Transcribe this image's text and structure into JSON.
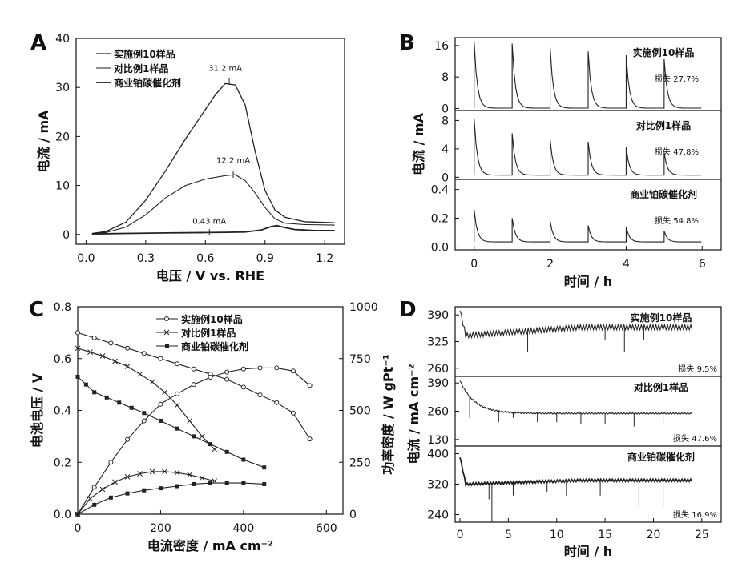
{
  "chart_data": [
    {
      "panel": "A",
      "type": "line",
      "xlabel": "电压 / V vs. RHE",
      "ylabel": "电流 / mA",
      "xlim": [
        -0.05,
        1.3
      ],
      "ylim": [
        -2,
        40
      ],
      "xticks": [
        "0.0",
        "0.3",
        "0.6",
        "0.9",
        "1.2"
      ],
      "yticks": [
        "0",
        "10",
        "20",
        "30",
        "40"
      ],
      "series": [
        {
          "name": "实施例10样品",
          "x": [
            0.03,
            0.1,
            0.2,
            0.3,
            0.4,
            0.5,
            0.6,
            0.65,
            0.7,
            0.75,
            0.8,
            0.85,
            0.9,
            0.95,
            1.0,
            1.1,
            1.25
          ],
          "y": [
            0.2,
            0.6,
            2.5,
            7,
            13,
            19.5,
            25.5,
            28.5,
            30.8,
            30.5,
            26.5,
            17,
            9,
            5,
            3.5,
            2.6,
            2.4
          ]
        },
        {
          "name": "对比例1样品",
          "x": [
            0.03,
            0.1,
            0.2,
            0.3,
            0.4,
            0.5,
            0.6,
            0.7,
            0.75,
            0.8,
            0.85,
            0.9,
            0.95,
            1.0,
            1.1,
            1.25
          ],
          "y": [
            0.1,
            0.4,
            1.5,
            4,
            7.5,
            10,
            11.3,
            12,
            12.2,
            11,
            8.5,
            5.5,
            3.2,
            2.3,
            2,
            1.9
          ]
        },
        {
          "name": "商业铂碳催化剂",
          "x": [
            0.03,
            0.2,
            0.4,
            0.6,
            0.7,
            0.8,
            0.88,
            0.93,
            0.96,
            1.0,
            1.05,
            1.15,
            1.25
          ],
          "y": [
            0.1,
            0.2,
            0.3,
            0.38,
            0.43,
            0.5,
            0.9,
            1.6,
            1.8,
            1.4,
            1,
            0.8,
            0.8
          ]
        }
      ],
      "annotations": [
        "31.2 mA",
        "12.2 mA",
        "0.43 mA"
      ]
    },
    {
      "panel": "B",
      "type": "line",
      "xlabel": "时间 / h",
      "ylabel": "电流 / mA",
      "xlim": [
        -0.5,
        6.5
      ],
      "xticks": [
        "0",
        "2",
        "4",
        "6"
      ],
      "spike_times": [
        0,
        1,
        2,
        3,
        4,
        5
      ],
      "subplots": [
        {
          "name": "实施例10样品",
          "ylim": [
            -0.5,
            18
          ],
          "yticks": [
            "0",
            "8",
            "16"
          ],
          "ytick_values": [
            0,
            8,
            16
          ],
          "peaks": [
            17,
            16.5,
            15.5,
            14.5,
            13.5,
            12.5
          ],
          "baseline": 0.1,
          "loss": "损失 27.7%"
        },
        {
          "name": "对比例1样品",
          "ylim": [
            -0.3,
            9.4
          ],
          "yticks": [
            "0",
            "4",
            "8"
          ],
          "ytick_values": [
            0,
            4,
            8
          ],
          "peaks": [
            8.3,
            6.2,
            5.3,
            5,
            4.2,
            3.5
          ],
          "baseline": 0.3,
          "loss": "损失 47.8%"
        },
        {
          "name": "商业铂碳催化剂",
          "ylim": [
            -0.02,
            0.47
          ],
          "yticks": [
            "0.0",
            "0.2",
            "0.4"
          ],
          "ytick_values": [
            0,
            0.2,
            0.4
          ],
          "peaks": [
            0.26,
            0.2,
            0.18,
            0.15,
            0.14,
            0.11
          ],
          "baseline": 0.035,
          "loss": "损失 54.8%"
        }
      ],
      "yticks_extra": [
        "0.0",
        "0.2",
        "0.4"
      ]
    },
    {
      "panel": "C",
      "type": "line",
      "xlabel": "电流密度 / mA cm⁻²",
      "ylabel": "电池电压 / V",
      "ylabel_right": "功率密度 / W gPt⁻¹",
      "xlim": [
        0,
        640
      ],
      "ylim": [
        0,
        0.8
      ],
      "ylim_right": [
        0,
        1000
      ],
      "xticks": [
        "0",
        "200",
        "400",
        "600"
      ],
      "yticks": [
        "0.0",
        "0.2",
        "0.4",
        "0.6",
        "0.8"
      ],
      "yticks_right": [
        "0",
        "250",
        "500",
        "750",
        "1000"
      ],
      "series": [
        {
          "name": "实施例10样品",
          "axis": "left",
          "x": [
            0,
            40,
            80,
            120,
            160,
            200,
            240,
            280,
            320,
            360,
            400,
            440,
            480,
            520,
            560
          ],
          "y": [
            0.7,
            0.68,
            0.66,
            0.64,
            0.62,
            0.6,
            0.58,
            0.56,
            0.54,
            0.52,
            0.49,
            0.46,
            0.43,
            0.39,
            0.29
          ]
        },
        {
          "name": "对比例1样品",
          "axis": "left",
          "x": [
            0,
            30,
            60,
            90,
            120,
            150,
            180,
            210,
            240,
            270,
            300,
            330
          ],
          "y": [
            0.64,
            0.625,
            0.61,
            0.59,
            0.57,
            0.54,
            0.51,
            0.47,
            0.42,
            0.36,
            0.3,
            0.25
          ]
        },
        {
          "name": "商业铂碳催化剂",
          "axis": "left",
          "x": [
            0,
            20,
            40,
            70,
            100,
            130,
            160,
            200,
            240,
            280,
            320,
            360,
            400,
            450
          ],
          "y": [
            0.53,
            0.5,
            0.47,
            0.45,
            0.43,
            0.41,
            0.39,
            0.36,
            0.33,
            0.3,
            0.27,
            0.24,
            0.21,
            0.18
          ]
        },
        {
          "name": "实施例10样品 功率",
          "axis": "right",
          "x": [
            0,
            40,
            80,
            120,
            160,
            200,
            240,
            280,
            320,
            360,
            400,
            440,
            480,
            520,
            560
          ],
          "y": [
            0,
            130,
            250,
            360,
            450,
            530,
            580,
            625,
            660,
            685,
            700,
            705,
            705,
            690,
            620
          ]
        },
        {
          "name": "对比例1样品 功率",
          "axis": "right",
          "x": [
            0,
            30,
            60,
            90,
            120,
            150,
            180,
            210,
            240,
            270,
            300,
            330
          ],
          "y": [
            0,
            75,
            120,
            155,
            180,
            195,
            205,
            205,
            200,
            190,
            175,
            160
          ]
        },
        {
          "name": "商业铂碳催化剂 功率",
          "axis": "right",
          "x": [
            0,
            40,
            80,
            120,
            160,
            200,
            240,
            280,
            320,
            360,
            400,
            450
          ],
          "y": [
            0,
            45,
            80,
            100,
            115,
            125,
            135,
            145,
            150,
            150,
            150,
            145
          ]
        }
      ]
    },
    {
      "panel": "D",
      "type": "line",
      "xlabel": "时间 / h",
      "ylabel": "电流 / mA cm⁻²",
      "xlim": [
        -0.5,
        27
      ],
      "xticks": [
        "0",
        "5",
        "10",
        "15",
        "20",
        "25"
      ],
      "subplots": [
        {
          "name": "实施例10样品",
          "ylim": [
            240,
            410
          ],
          "yticks": [
            "260",
            "325",
            "390"
          ],
          "ytick_values": [
            260,
            325,
            390
          ],
          "start": 400,
          "base": 340,
          "end": 360,
          "drops": [
            {
              "t": 7,
              "to": 300
            },
            {
              "t": 17,
              "to": 300
            },
            {
              "t": 15,
              "to": 330
            },
            {
              "t": 19,
              "to": 330
            }
          ],
          "loss": "损失 9.5%"
        },
        {
          "name": "对比例1样品",
          "ylim": [
            100,
            420
          ],
          "yticks": [
            "130",
            "260",
            "390"
          ],
          "ytick_values": [
            130,
            260,
            390
          ],
          "start": 400,
          "base": 300,
          "end": 250,
          "drops": [
            {
              "t": 1,
              "to": 230
            },
            {
              "t": 4,
              "to": 210
            },
            {
              "t": 5.5,
              "to": 230
            },
            {
              "t": 8,
              "to": 210
            },
            {
              "t": 10,
              "to": 210
            },
            {
              "t": 12.5,
              "to": 200
            },
            {
              "t": 15,
              "to": 200
            },
            {
              "t": 18,
              "to": 190
            },
            {
              "t": 21,
              "to": 200
            }
          ],
          "loss": "损失 47.6%"
        },
        {
          "name": "商业铂碳催化剂",
          "ylim": [
            220,
            420
          ],
          "yticks": [
            "240",
            "320",
            "400"
          ],
          "ytick_values": [
            240,
            320,
            400
          ],
          "start": 390,
          "base": 320,
          "end": 330,
          "drops": [
            {
              "t": 3.3,
              "to": 220
            },
            {
              "t": 3,
              "to": 280
            },
            {
              "t": 5.5,
              "to": 290
            },
            {
              "t": 9,
              "to": 300
            },
            {
              "t": 11,
              "to": 290
            },
            {
              "t": 14.5,
              "to": 290
            },
            {
              "t": 18.5,
              "to": 260
            },
            {
              "t": 21,
              "to": 260
            }
          ],
          "loss": "损失 16.9%"
        }
      ]
    }
  ],
  "panel_labels": [
    "A",
    "B",
    "C",
    "D"
  ],
  "sub_b": "Pt"
}
